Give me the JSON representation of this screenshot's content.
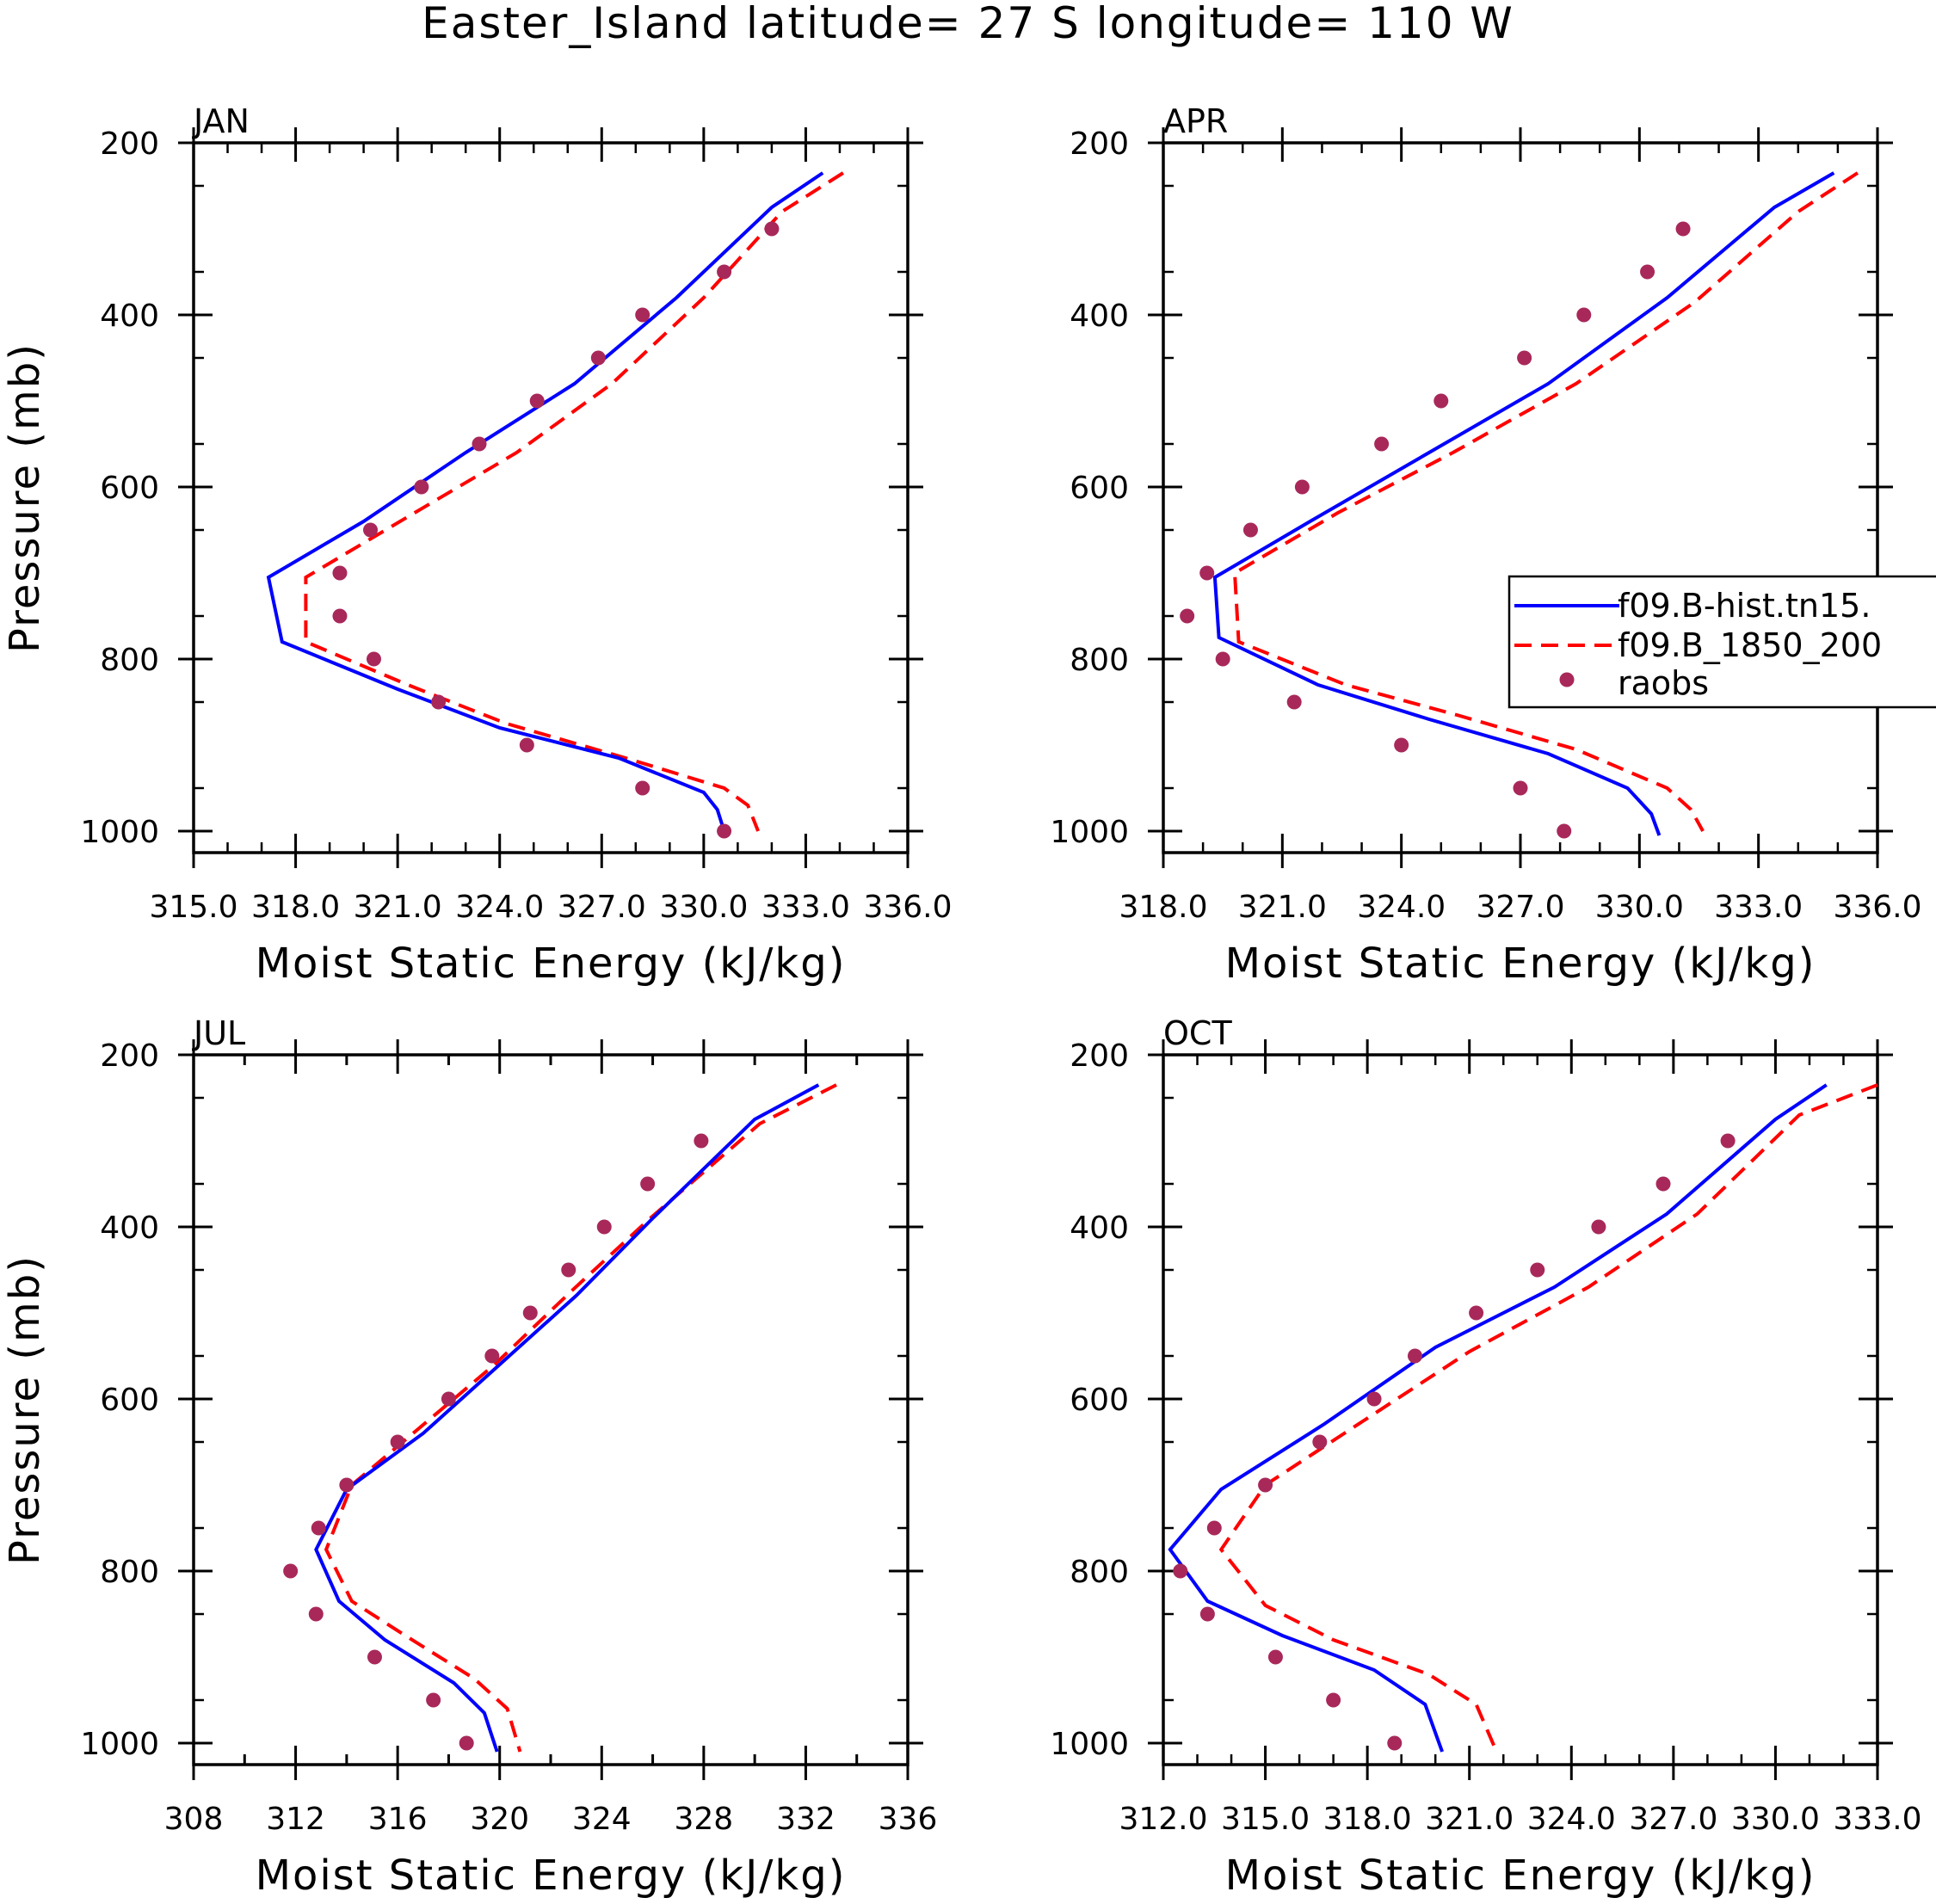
{
  "chart_data": {
    "type": "line",
    "title": "Easter_Island  latitude= 27 S longitude= 110 W",
    "ylabel": "Pressure (mb)",
    "xlabel": "Moist Static Energy (kJ/kg)",
    "ylim": [
      200,
      1025
    ],
    "yticks": [
      200,
      400,
      600,
      800,
      1000
    ],
    "legend": {
      "placement": "right",
      "entries": [
        {
          "name": "f09.B-hist.tn15.",
          "style": "solid",
          "color": "#0000ff"
        },
        {
          "name": "f09.B_1850_200",
          "style": "dashed",
          "color": "#ff0000"
        },
        {
          "name": "raobs",
          "style": "markers",
          "color": "#a8285a"
        }
      ]
    },
    "panels": [
      {
        "label": "JAN",
        "xlim": [
          315.0,
          336.0
        ],
        "xtick_labels": [
          "315.0",
          "318.0",
          "321.0",
          "324.0",
          "327.0",
          "330.0",
          "333.0",
          "336.0"
        ],
        "xticks": [
          315,
          318,
          321,
          324,
          327,
          330,
          333,
          336
        ],
        "model1": {
          "x": [
            333.5,
            332.0,
            329.2,
            326.2,
            323.0,
            320.0,
            317.2,
            317.6,
            321.0,
            324.0,
            327.5,
            330.0,
            330.4,
            330.6
          ],
          "y": [
            235,
            275,
            380,
            480,
            560,
            640,
            705,
            780,
            835,
            880,
            915,
            955,
            975,
            1000
          ]
        },
        "model2": {
          "x": [
            334.1,
            332.3,
            330.0,
            327.3,
            324.5,
            321.5,
            318.3,
            318.3,
            321.3,
            324.2,
            327.7,
            330.6,
            331.3,
            331.6
          ],
          "y": [
            235,
            280,
            380,
            480,
            560,
            630,
            705,
            780,
            830,
            875,
            915,
            950,
            970,
            1000
          ]
        },
        "raobs": {
          "x": [
            332.0,
            330.6,
            328.2,
            326.9,
            325.1,
            323.4,
            321.7,
            320.2,
            319.3,
            319.3,
            320.3,
            322.2,
            324.8,
            328.2,
            330.6
          ],
          "y": [
            300,
            350,
            400,
            450,
            500,
            550,
            600,
            650,
            700,
            750,
            800,
            850,
            900,
            950,
            1000
          ]
        }
      },
      {
        "label": "APR",
        "xlim": [
          318.0,
          336.0
        ],
        "xtick_labels": [
          "318.0",
          "321.0",
          "324.0",
          "327.0",
          "330.0",
          "333.0",
          "336.0"
        ],
        "xticks": [
          318,
          321,
          324,
          327,
          330,
          333,
          336
        ],
        "model1": {
          "x": [
            334.9,
            333.4,
            330.7,
            327.7,
            324.7,
            321.7,
            319.3,
            319.4,
            321.9,
            324.7,
            327.7,
            329.7,
            330.3,
            330.5
          ],
          "y": [
            235,
            275,
            380,
            480,
            560,
            640,
            705,
            775,
            830,
            870,
            910,
            950,
            980,
            1005
          ]
        },
        "model2": {
          "x": [
            335.5,
            334.0,
            331.4,
            328.4,
            325.3,
            322.4,
            319.8,
            319.9,
            322.6,
            325.4,
            328.4,
            330.7,
            331.3,
            331.6
          ],
          "y": [
            235,
            280,
            385,
            480,
            560,
            630,
            700,
            780,
            830,
            865,
            905,
            950,
            975,
            1000
          ]
        },
        "raobs": {
          "x": [
            331.1,
            330.2,
            328.6,
            327.1,
            325.0,
            323.5,
            321.5,
            320.2,
            319.1,
            318.6,
            319.5,
            321.3,
            324.0,
            327.0,
            328.1
          ],
          "y": [
            300,
            350,
            400,
            450,
            500,
            550,
            600,
            650,
            700,
            750,
            800,
            850,
            900,
            950,
            1000
          ]
        }
      },
      {
        "label": "JUL",
        "xlim": [
          308,
          336
        ],
        "xtick_labels": [
          "308",
          "312",
          "316",
          "320",
          "324",
          "328",
          "332",
          "336"
        ],
        "xticks": [
          308,
          310,
          312,
          314,
          316,
          318,
          320,
          322,
          324,
          326,
          328,
          330,
          332,
          334,
          336
        ],
        "model1": {
          "x": [
            332.5,
            330.0,
            326.0,
            323.0,
            320.0,
            317.0,
            314.0,
            312.8,
            313.7,
            315.5,
            318.2,
            319.4,
            319.9
          ],
          "y": [
            235,
            275,
            390,
            480,
            560,
            640,
            705,
            775,
            835,
            880,
            930,
            965,
            1010
          ]
        },
        "model2": {
          "x": [
            333.2,
            330.2,
            325.9,
            322.8,
            319.8,
            316.8,
            314.2,
            313.2,
            314.2,
            316.3,
            319.0,
            320.3,
            320.8
          ],
          "y": [
            235,
            280,
            390,
            475,
            560,
            635,
            700,
            775,
            835,
            875,
            925,
            960,
            1010
          ]
        },
        "raobs": {
          "x": [
            327.9,
            325.8,
            324.1,
            322.7,
            321.2,
            319.7,
            318.0,
            316.0,
            314.0,
            312.9,
            311.8,
            312.8,
            315.1,
            317.4,
            318.7
          ],
          "y": [
            300,
            350,
            400,
            450,
            500,
            550,
            600,
            650,
            700,
            750,
            800,
            850,
            900,
            950,
            1000
          ]
        }
      },
      {
        "label": "OCT",
        "xlim": [
          312.0,
          333.0
        ],
        "xtick_labels": [
          "312.0",
          "315.0",
          "318.0",
          "321.0",
          "324.0",
          "327.0",
          "330.0",
          "333.0"
        ],
        "xticks": [
          312,
          315,
          318,
          321,
          324,
          327,
          330,
          333
        ],
        "model1": {
          "x": [
            331.5,
            330.0,
            326.8,
            323.5,
            320.0,
            316.7,
            313.7,
            312.2,
            313.3,
            315.5,
            318.2,
            319.7,
            320.2
          ],
          "y": [
            235,
            275,
            385,
            470,
            540,
            630,
            705,
            775,
            835,
            875,
            915,
            955,
            1010
          ]
        },
        "model2": {
          "x": [
            333.0,
            330.7,
            327.7,
            324.5,
            321.0,
            317.9,
            315.0,
            313.7,
            315.0,
            317.0,
            319.8,
            321.2,
            321.8
          ],
          "y": [
            235,
            270,
            385,
            470,
            545,
            625,
            700,
            775,
            840,
            880,
            920,
            955,
            1010
          ]
        },
        "raobs": {
          "x": [
            328.6,
            326.7,
            324.8,
            323.0,
            321.2,
            319.4,
            318.2,
            316.6,
            315.0,
            313.5,
            312.5,
            313.3,
            315.3,
            317.0,
            318.8
          ],
          "y": [
            300,
            350,
            400,
            450,
            500,
            550,
            600,
            650,
            700,
            750,
            800,
            850,
            900,
            950,
            1000
          ]
        }
      }
    ]
  }
}
